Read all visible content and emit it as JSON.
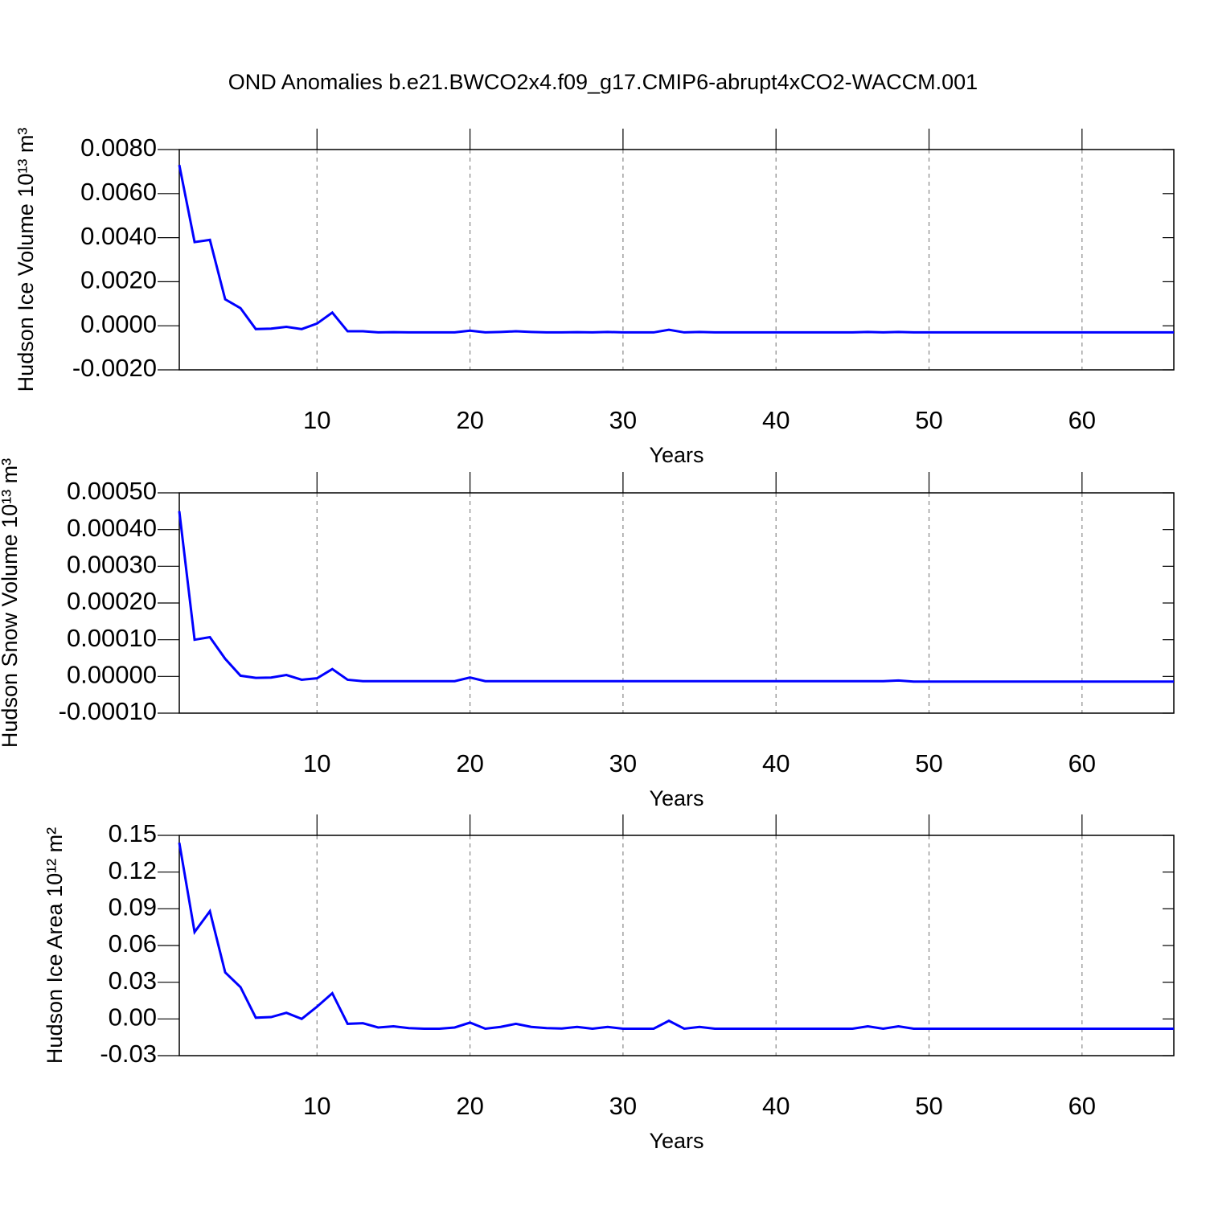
{
  "chart_data": [
    {
      "type": "line",
      "title": "OND Anomalies b.e21.BWCO2x4.f09_g17.CMIP6-abrupt4xCO2-WACCM.001",
      "ylabel": "Hudson Ice Volume 10¹³ m³",
      "xlabel": "Years",
      "color": "#0000ff",
      "grid": true,
      "xlim": [
        1,
        66
      ],
      "xticks": [
        10,
        20,
        30,
        40,
        50,
        60
      ],
      "ylim": [
        -0.002,
        0.008
      ],
      "yticks": [
        {
          "value": -0.002,
          "label": "-0.0020"
        },
        {
          "value": 0,
          "label": "0.0000"
        },
        {
          "value": 0.002,
          "label": "0.0020"
        },
        {
          "value": 0.004,
          "label": "0.0040"
        },
        {
          "value": 0.006,
          "label": "0.0060"
        },
        {
          "value": 0.008,
          "label": "0.0080"
        }
      ],
      "x": [
        1,
        2,
        3,
        4,
        5,
        6,
        7,
        8,
        9,
        10,
        11,
        12,
        13,
        14,
        15,
        16,
        17,
        18,
        19,
        20,
        21,
        22,
        23,
        24,
        25,
        26,
        27,
        28,
        29,
        30,
        31,
        32,
        33,
        34,
        35,
        36,
        37,
        38,
        39,
        40,
        41,
        42,
        43,
        44,
        45,
        46,
        47,
        48,
        49,
        50,
        51,
        52,
        53,
        54,
        55,
        56,
        57,
        58,
        59,
        60,
        61,
        62,
        63,
        64,
        65,
        66
      ],
      "values": [
        0.0073,
        0.0038,
        0.0039,
        0.0012,
        0.0008,
        -0.00015,
        -0.00013,
        -5e-05,
        -0.00015,
        0.0001,
        0.0006,
        -0.00025,
        -0.00025,
        -0.0003,
        -0.00029,
        -0.0003,
        -0.0003,
        -0.0003,
        -0.0003,
        -0.00022,
        -0.0003,
        -0.00028,
        -0.00025,
        -0.00028,
        -0.0003,
        -0.0003,
        -0.00029,
        -0.0003,
        -0.00028,
        -0.0003,
        -0.0003,
        -0.0003,
        -0.00018,
        -0.0003,
        -0.00028,
        -0.0003,
        -0.0003,
        -0.0003,
        -0.0003,
        -0.0003,
        -0.0003,
        -0.0003,
        -0.0003,
        -0.0003,
        -0.0003,
        -0.00028,
        -0.0003,
        -0.00028,
        -0.0003,
        -0.0003,
        -0.0003,
        -0.0003,
        -0.0003,
        -0.0003,
        -0.0003,
        -0.0003,
        -0.0003,
        -0.0003,
        -0.0003,
        -0.0003,
        -0.0003,
        -0.0003,
        -0.0003,
        -0.0003,
        -0.0003,
        -0.0003
      ]
    },
    {
      "type": "line",
      "ylabel": "Hudson Snow Volume 10¹³ m³",
      "xlabel": "Years",
      "color": "#0000ff",
      "grid": true,
      "xlim": [
        1,
        66
      ],
      "xticks": [
        10,
        20,
        30,
        40,
        50,
        60
      ],
      "ylim": [
        -0.0001,
        0.0005
      ],
      "yticks": [
        {
          "value": -0.0001,
          "label": "-0.00010"
        },
        {
          "value": 0,
          "label": "0.00000"
        },
        {
          "value": 0.0001,
          "label": "0.00010"
        },
        {
          "value": 0.0002,
          "label": "0.00020"
        },
        {
          "value": 0.0003,
          "label": "0.00030"
        },
        {
          "value": 0.0004,
          "label": "0.00040"
        },
        {
          "value": 0.0005,
          "label": "0.00050"
        }
      ],
      "x": [
        1,
        2,
        3,
        4,
        5,
        6,
        7,
        8,
        9,
        10,
        11,
        12,
        13,
        14,
        15,
        16,
        17,
        18,
        19,
        20,
        21,
        22,
        23,
        24,
        25,
        26,
        27,
        28,
        29,
        30,
        31,
        32,
        33,
        34,
        35,
        36,
        37,
        38,
        39,
        40,
        41,
        42,
        43,
        44,
        45,
        46,
        47,
        48,
        49,
        50,
        51,
        52,
        53,
        54,
        55,
        56,
        57,
        58,
        59,
        60,
        61,
        62,
        63,
        64,
        65,
        66
      ],
      "values": [
        0.00045,
        0.0001,
        0.000107,
        4.8e-05,
        2e-06,
        -4e-06,
        -3e-06,
        4e-06,
        -9e-06,
        -5e-06,
        2e-05,
        -9e-06,
        -1.3e-05,
        -1.3e-05,
        -1.3e-05,
        -1.3e-05,
        -1.3e-05,
        -1.3e-05,
        -1.3e-05,
        -3e-06,
        -1.3e-05,
        -1.3e-05,
        -1.3e-05,
        -1.3e-05,
        -1.3e-05,
        -1.3e-05,
        -1.3e-05,
        -1.3e-05,
        -1.3e-05,
        -1.3e-05,
        -1.3e-05,
        -1.3e-05,
        -1.3e-05,
        -1.3e-05,
        -1.3e-05,
        -1.3e-05,
        -1.3e-05,
        -1.3e-05,
        -1.3e-05,
        -1.3e-05,
        -1.3e-05,
        -1.3e-05,
        -1.3e-05,
        -1.3e-05,
        -1.3e-05,
        -1.3e-05,
        -1.3e-05,
        -1.1e-05,
        -1.4e-05,
        -1.4e-05,
        -1.4e-05,
        -1.4e-05,
        -1.4e-05,
        -1.4e-05,
        -1.4e-05,
        -1.4e-05,
        -1.4e-05,
        -1.4e-05,
        -1.4e-05,
        -1.4e-05,
        -1.4e-05,
        -1.4e-05,
        -1.4e-05,
        -1.4e-05,
        -1.4e-05,
        -1.4e-05
      ]
    },
    {
      "type": "line",
      "ylabel": "Hudson Ice Area 10¹² m²",
      "xlabel": "Years",
      "color": "#0000ff",
      "grid": true,
      "xlim": [
        1,
        66
      ],
      "xticks": [
        10,
        20,
        30,
        40,
        50,
        60
      ],
      "ylim": [
        -0.03,
        0.15
      ],
      "yticks": [
        -0.03,
        {
          "value": 0,
          "label": "0.00"
        },
        0.03,
        0.06,
        0.09,
        0.12,
        0.15
      ],
      "x": [
        1,
        2,
        3,
        4,
        5,
        6,
        7,
        8,
        9,
        10,
        11,
        12,
        13,
        14,
        15,
        16,
        17,
        18,
        19,
        20,
        21,
        22,
        23,
        24,
        25,
        26,
        27,
        28,
        29,
        30,
        31,
        32,
        33,
        34,
        35,
        36,
        37,
        38,
        39,
        40,
        41,
        42,
        43,
        44,
        45,
        46,
        47,
        48,
        49,
        50,
        51,
        52,
        53,
        54,
        55,
        56,
        57,
        58,
        59,
        60,
        61,
        62,
        63,
        64,
        65,
        66
      ],
      "values": [
        0.144,
        0.071,
        0.088,
        0.038,
        0.026,
        0.001,
        0.0015,
        0.005,
        0,
        0.01,
        0.021,
        -0.004,
        -0.0035,
        -0.007,
        -0.006,
        -0.0075,
        -0.008,
        -0.008,
        -0.007,
        -0.003,
        -0.008,
        -0.0065,
        -0.004,
        -0.0065,
        -0.0075,
        -0.0078,
        -0.0065,
        -0.008,
        -0.0065,
        -0.008,
        -0.008,
        -0.008,
        -0.0015,
        -0.008,
        -0.0065,
        -0.008,
        -0.008,
        -0.008,
        -0.008,
        -0.008,
        -0.008,
        -0.008,
        -0.008,
        -0.008,
        -0.008,
        -0.006,
        -0.008,
        -0.006,
        -0.008,
        -0.008,
        -0.008,
        -0.008,
        -0.008,
        -0.008,
        -0.008,
        -0.008,
        -0.008,
        -0.008,
        -0.008,
        -0.008,
        -0.008,
        -0.008,
        -0.008,
        -0.008,
        -0.008,
        -0.008
      ]
    }
  ]
}
